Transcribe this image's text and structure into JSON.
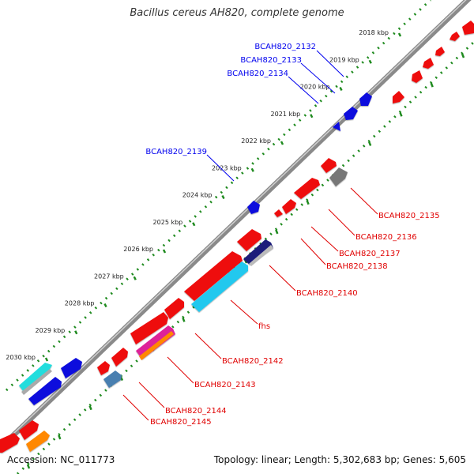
{
  "title": "Bacillus cereus AH820, complete genome",
  "accession_label": "Accession: NC_011773",
  "topology_text": "Topology: linear; Length: 5,302,683 bp; Genes: 5,605",
  "ruler_labels": [
    "2018 kbp",
    "2019 kbp",
    "2020 kbp",
    "2021 kbp",
    "2022 kbp",
    "2023 kbp",
    "2024 kbp",
    "2025 kbp",
    "2026 kbp",
    "2027 kbp",
    "2028 kbp",
    "2029 kbp",
    "2030 kbp"
  ],
  "genes_forward": [
    {
      "name": "BCAH820_2132",
      "color": "#0000ee"
    },
    {
      "name": "BCAH820_2133",
      "color": "#0000ee"
    },
    {
      "name": "BCAH820_2134",
      "color": "#0000ee"
    },
    {
      "name": "BCAH820_2139",
      "color": "#0000ee"
    }
  ],
  "genes_reverse": [
    {
      "name": "BCAH820_2135",
      "color": "#e00000"
    },
    {
      "name": "BCAH820_2136",
      "color": "#e00000"
    },
    {
      "name": "BCAH820_2137",
      "color": "#e00000"
    },
    {
      "name": "BCAH820_2138",
      "color": "#e00000"
    },
    {
      "name": "BCAH820_2140",
      "color": "#e00000"
    },
    {
      "name": "fhs",
      "color": "#e00000"
    },
    {
      "name": "BCAH820_2142",
      "color": "#e00000"
    },
    {
      "name": "BCAH820_2143",
      "color": "#e00000"
    },
    {
      "name": "BCAH820_2144",
      "color": "#e00000"
    },
    {
      "name": "BCAH820_2145",
      "color": "#e00000"
    }
  ],
  "colors": {
    "backbone": "#8a8a8a",
    "ruler_dots": "#1e8a1e",
    "gene_red": "#ee1111",
    "gene_blue": "#1111dd",
    "gene_cyan": "#22c8ee",
    "gene_navy": "#1a1a7a",
    "gene_gray": "#777777",
    "gene_magenta": "#dd2299",
    "gene_steel": "#4a7fb0",
    "gene_orange": "#ff8800",
    "gene_aqua": "#22dddd"
  }
}
